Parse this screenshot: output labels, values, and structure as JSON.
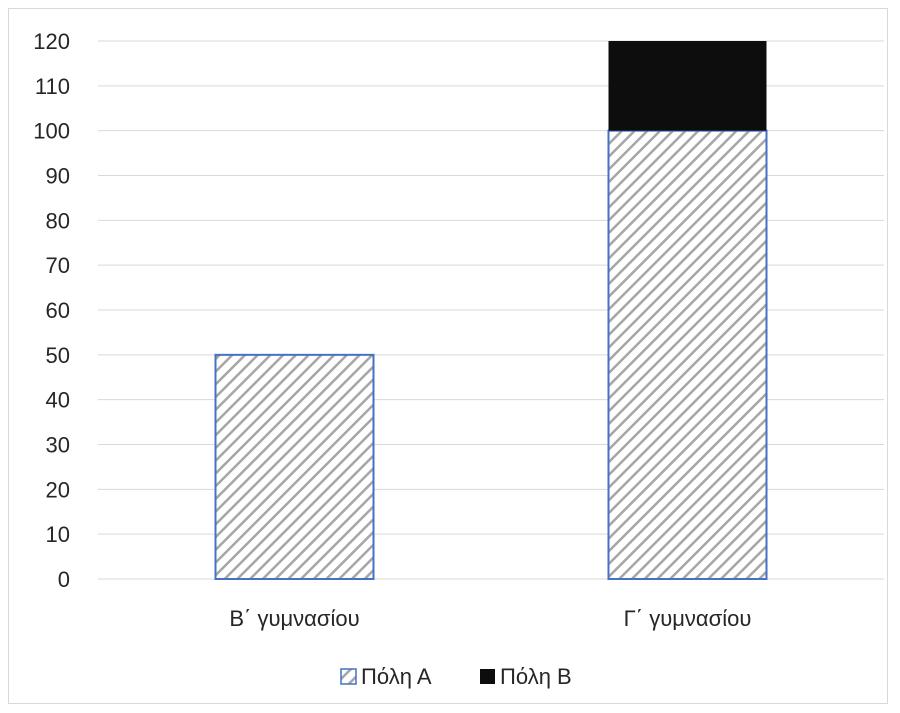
{
  "chart_data": {
    "type": "bar",
    "stacked": true,
    "categories": [
      "Β΄ γυμνασίου",
      "Γ΄ γυμνασίου"
    ],
    "series": [
      {
        "name": "Πόλη Α",
        "values": [
          50,
          100
        ],
        "fill": "hatched",
        "color": "#a6a6a6",
        "border": "#4472c4"
      },
      {
        "name": "Πόλη Β",
        "values": [
          0,
          20
        ],
        "fill": "solid",
        "color": "#0d0d0d"
      }
    ],
    "ylim": [
      0,
      120
    ],
    "yticks": [
      0,
      10,
      20,
      30,
      40,
      50,
      60,
      70,
      80,
      90,
      100,
      110,
      120
    ],
    "grid": true,
    "legend_position": "bottom"
  }
}
